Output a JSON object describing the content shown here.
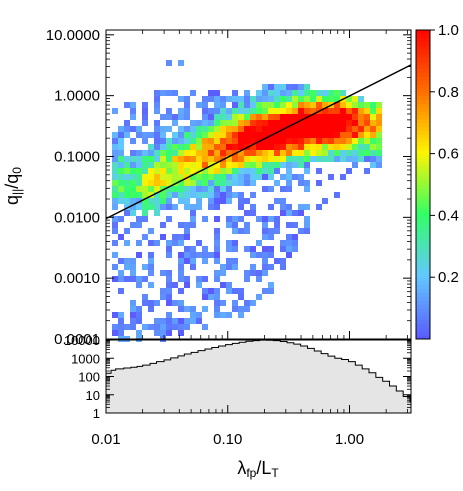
{
  "chart_data": [
    {
      "type": "heatmap",
      "title": "",
      "xlabel": "λfp/LT",
      "ylabel": "q||/q0",
      "x_scale": "log",
      "y_scale": "log",
      "xlim": [
        0.01,
        3.2
      ],
      "ylim": [
        0.0001,
        12
      ],
      "x_ticks": [
        0.01,
        0.1,
        1.0
      ],
      "x_tick_labels": [
        "0.01",
        "0.10",
        "1.00"
      ],
      "y_ticks": [
        0.0001,
        0.001,
        0.01,
        0.1,
        1,
        10
      ],
      "y_tick_labels": [
        "0.0001",
        "0.0010",
        "0.0100",
        "0.1000",
        "1.0000",
        "10.0000"
      ],
      "colorbar": {
        "min": 0.0,
        "max": 1.0,
        "ticks": [
          0.2,
          0.4,
          0.6,
          0.8,
          1.0
        ],
        "tick_labels": [
          "0.2",
          "0.4",
          "0.6",
          "0.8",
          "1.0"
        ],
        "colors": [
          "#5a5cff",
          "#63c8ff",
          "#33ff66",
          "#fff300",
          "#ff6d00",
          "#ff0000"
        ]
      },
      "fit_line": {
        "x": [
          0.01,
          3.2
        ],
        "y": [
          0.0095,
          3.2
        ]
      },
      "density_model": {
        "ridge_points": [
          [
            0.012,
            0.045
          ],
          [
            0.02,
            0.033
          ],
          [
            0.035,
            0.06
          ],
          [
            0.07,
            0.11
          ],
          [
            0.12,
            0.17
          ],
          [
            0.2,
            0.22
          ],
          [
            0.35,
            0.28
          ],
          [
            0.6,
            0.34
          ],
          [
            1.0,
            0.36
          ],
          [
            1.5,
            0.31
          ]
        ],
        "lower_edge_points": [
          [
            0.012,
            0.00012
          ],
          [
            0.03,
            0.00012
          ],
          [
            0.08,
            0.0002
          ],
          [
            0.15,
            0.00035
          ],
          [
            0.25,
            0.0009
          ],
          [
            0.35,
            0.002
          ],
          [
            0.45,
            0.006
          ],
          [
            0.6,
            0.018
          ],
          [
            0.85,
            0.03
          ],
          [
            1.2,
            0.05
          ],
          [
            1.6,
            0.08
          ]
        ],
        "upper_edge_points": [
          [
            0.012,
            0.5
          ],
          [
            0.02,
            0.8
          ],
          [
            0.04,
            0.9
          ],
          [
            0.08,
            1.0
          ],
          [
            0.15,
            1.0
          ],
          [
            0.3,
            1.1
          ],
          [
            0.6,
            1.0
          ],
          [
            1.0,
            0.8
          ],
          [
            1.5,
            0.6
          ]
        ]
      }
    },
    {
      "type": "area",
      "title": "",
      "xlabel": "λfp/LT",
      "ylabel": "",
      "x_scale": "log",
      "y_scale": "log",
      "xlim": [
        0.01,
        3.2
      ],
      "ylim": [
        1,
        10000
      ],
      "y_ticks": [
        1,
        10,
        100,
        1000,
        10000
      ],
      "y_tick_labels": [
        "1",
        "10",
        "100",
        "1000",
        "10000"
      ],
      "x": [
        0.01,
        0.011,
        0.012,
        0.014,
        0.016,
        0.018,
        0.02,
        0.023,
        0.026,
        0.03,
        0.034,
        0.039,
        0.044,
        0.05,
        0.057,
        0.065,
        0.074,
        0.084,
        0.096,
        0.109,
        0.124,
        0.141,
        0.161,
        0.183,
        0.208,
        0.237,
        0.27,
        0.307,
        0.349,
        0.397,
        0.452,
        0.514,
        0.585,
        0.666,
        0.758,
        0.862,
        0.981,
        1.117,
        1.271,
        1.446,
        1.646,
        1.873,
        2.131,
        2.425,
        2.76,
        3.14
      ],
      "values": [
        150,
        220,
        260,
        290,
        320,
        360,
        420,
        520,
        650,
        820,
        1050,
        1350,
        1700,
        2100,
        2600,
        3200,
        3900,
        4700,
        5600,
        6500,
        7500,
        8500,
        9300,
        9800,
        9700,
        9200,
        8300,
        7100,
        5900,
        4700,
        3500,
        2500,
        1800,
        1300,
        1000,
        850,
        650,
        420,
        260,
        160,
        90,
        55,
        30,
        16,
        8,
        4
      ]
    }
  ]
}
